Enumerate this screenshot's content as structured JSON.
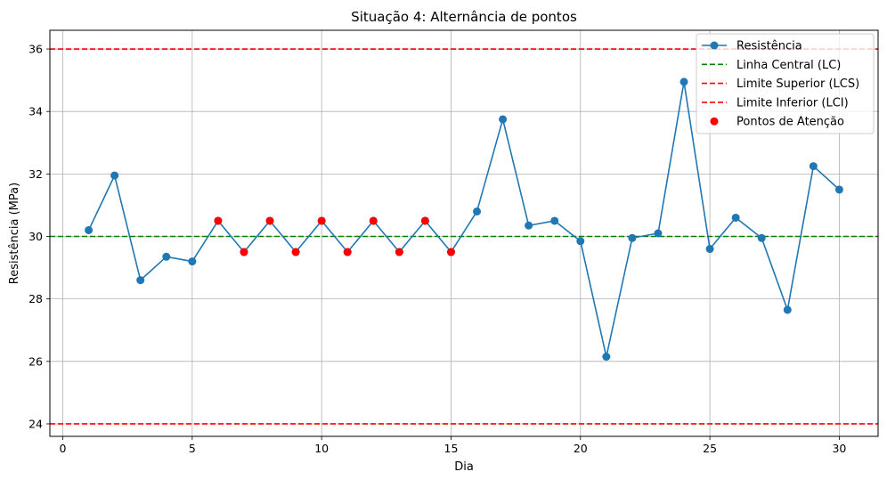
{
  "chart_data": {
    "type": "line",
    "title": "Situação 4: Alternância de pontos",
    "xlabel": "Dia",
    "ylabel": "Resistência (MPa)",
    "xlim": [
      -0.5,
      31.5
    ],
    "ylim": [
      23.6,
      36.6
    ],
    "xticks": [
      0,
      5,
      10,
      15,
      20,
      25,
      30
    ],
    "yticks": [
      24,
      26,
      28,
      30,
      32,
      34,
      36
    ],
    "grid": true,
    "legend_position": "top-right",
    "x": [
      1,
      2,
      3,
      4,
      5,
      6,
      7,
      8,
      9,
      10,
      11,
      12,
      13,
      14,
      15,
      16,
      17,
      18,
      19,
      20,
      21,
      22,
      23,
      24,
      25,
      26,
      27,
      28,
      29,
      30
    ],
    "series": [
      {
        "name": "Resistência",
        "color": "#1f77b4",
        "values": [
          30.2,
          31.95,
          28.6,
          29.35,
          29.2,
          30.5,
          29.5,
          30.5,
          29.5,
          30.5,
          29.5,
          30.5,
          29.5,
          30.5,
          29.5,
          30.8,
          33.75,
          30.35,
          30.5,
          29.85,
          26.15,
          29.95,
          30.1,
          34.95,
          29.6,
          30.6,
          29.95,
          27.65,
          32.25,
          31.5
        ]
      }
    ],
    "hlines": [
      {
        "name": "Linha Central (LC)",
        "y": 30,
        "color": "#008000"
      },
      {
        "name": "Limite Superior (LCS)",
        "y": 36,
        "color": "#ff0000"
      },
      {
        "name": "Limite Inferior (LCI)",
        "y": 24,
        "color": "#ff0000"
      }
    ],
    "attention_points": {
      "name": "Pontos de Atenção",
      "color": "#ff0000",
      "x": [
        6,
        7,
        8,
        9,
        10,
        11,
        12,
        13,
        14,
        15
      ],
      "y": [
        30.5,
        29.5,
        30.5,
        29.5,
        30.5,
        29.5,
        30.5,
        29.5,
        30.5,
        29.5
      ]
    }
  }
}
